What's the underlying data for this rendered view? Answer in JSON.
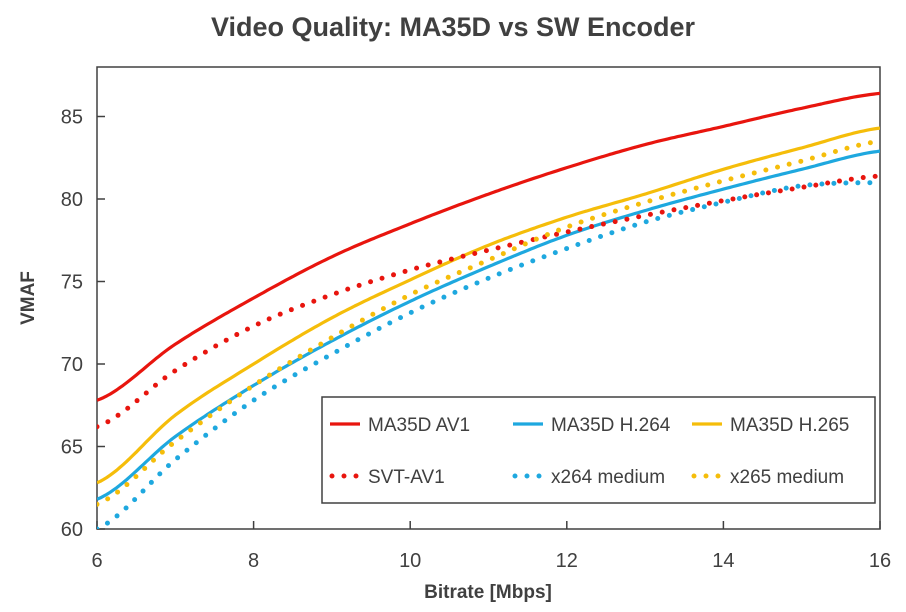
{
  "chart_data": {
    "type": "line",
    "title": "Video Quality: MA35D vs SW Encoder",
    "xlabel": "Bitrate [Mbps]",
    "ylabel": "VMAF",
    "xlim": [
      6,
      16
    ],
    "ylim": [
      60,
      88
    ],
    "xticks": [
      6,
      8,
      10,
      12,
      14,
      16
    ],
    "yticks": [
      60,
      65,
      70,
      75,
      80,
      85
    ],
    "grid": false,
    "legend_position": "bottom-right",
    "x": [
      6,
      7,
      8,
      9,
      10,
      11,
      12,
      13,
      14,
      15,
      16
    ],
    "series": [
      {
        "name": "MA35D AV1",
        "style": "solid",
        "color": "#e8150e",
        "values": [
          67.8,
          71.2,
          74.0,
          76.5,
          78.5,
          80.3,
          81.9,
          83.3,
          84.4,
          85.5,
          86.4
        ]
      },
      {
        "name": "MA35D H.264",
        "style": "solid",
        "color": "#1ea8df",
        "values": [
          61.8,
          65.6,
          68.7,
          71.4,
          73.8,
          75.9,
          77.8,
          79.3,
          80.6,
          81.8,
          82.9
        ]
      },
      {
        "name": "MA35D H.265",
        "style": "solid",
        "color": "#f5bd0a",
        "values": [
          62.8,
          66.9,
          70.0,
          72.8,
          75.1,
          77.2,
          78.9,
          80.3,
          81.8,
          83.1,
          84.3
        ]
      },
      {
        "name": "SVT-AV1",
        "style": "dotted",
        "color": "#e8150e",
        "values": [
          66.2,
          69.6,
          72.3,
          74.2,
          75.7,
          76.9,
          78.0,
          79.0,
          79.9,
          80.7,
          81.4
        ]
      },
      {
        "name": "x264 medium",
        "style": "dotted",
        "color": "#1ea8df",
        "values": [
          60.0,
          64.2,
          67.8,
          70.6,
          73.1,
          75.2,
          77.0,
          78.6,
          79.8,
          80.8,
          81.0
        ]
      },
      {
        "name": "x265 medium",
        "style": "dotted",
        "color": "#f5bd0a",
        "values": [
          61.5,
          65.3,
          68.7,
          71.6,
          74.2,
          76.3,
          78.3,
          79.8,
          81.1,
          82.3,
          83.5
        ]
      }
    ]
  }
}
